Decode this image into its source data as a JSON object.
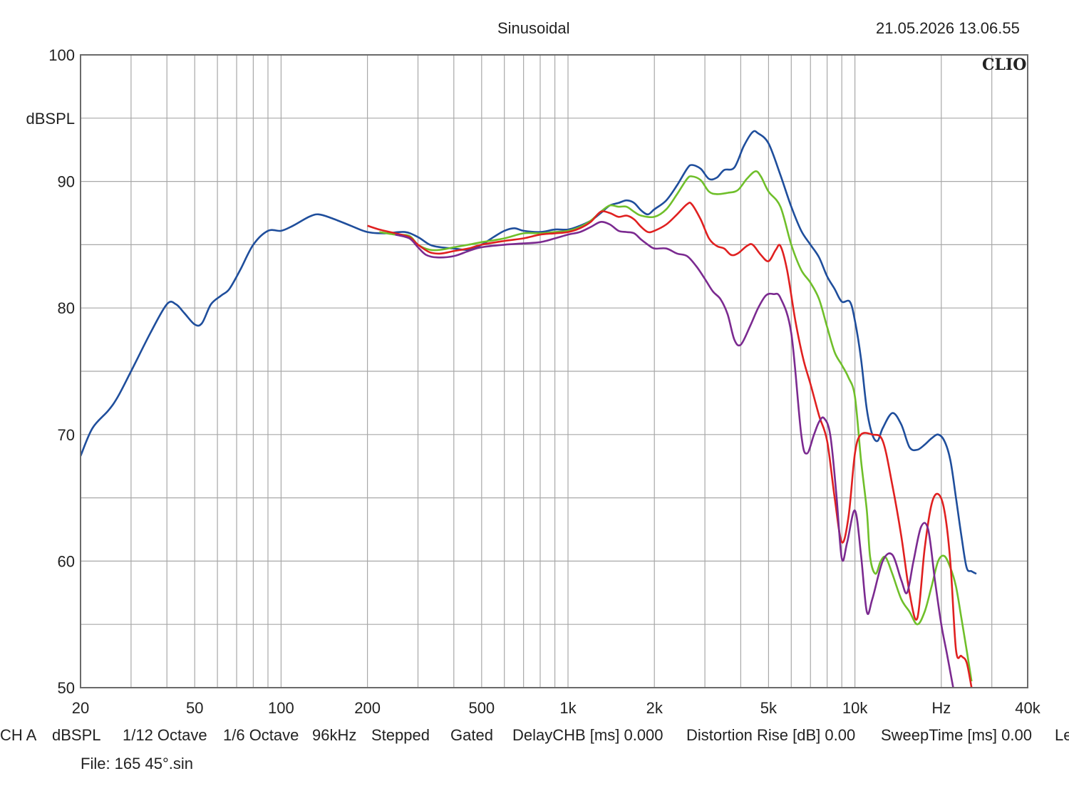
{
  "header": {
    "title": "Sinusoidal",
    "timestamp": "21.05.2026 13.06.55",
    "logo": "CLIO"
  },
  "footer": {
    "settings": [
      "CH A",
      "dBSPL",
      "1/12 Octave",
      "1/6 Octave",
      "96kHz",
      "Stepped",
      "Gated",
      "DelayCHB [ms] 0.000",
      "Distortion Rise [dB] 0.00",
      "SweepTime [ms] 0.00",
      "Le"
    ],
    "file": "File: 165 45°.sin"
  },
  "chart_data": {
    "type": "line",
    "title": "Sinusoidal",
    "ylabel": "dBSPL",
    "xscale": "log",
    "xlim": [
      20,
      40000
    ],
    "ylim": [
      50,
      100
    ],
    "grid": true,
    "xticks": [
      {
        "value": 20,
        "label": "20"
      },
      {
        "value": 50,
        "label": "50"
      },
      {
        "value": 100,
        "label": "100"
      },
      {
        "value": 200,
        "label": "200"
      },
      {
        "value": 500,
        "label": "500"
      },
      {
        "value": 1000,
        "label": "1k"
      },
      {
        "value": 2000,
        "label": "2k"
      },
      {
        "value": 5000,
        "label": "5k"
      },
      {
        "value": 10000,
        "label": "10k"
      },
      {
        "value": 20000,
        "label": "Hz"
      },
      {
        "value": 40000,
        "label": "40k"
      }
    ],
    "yticks": [
      {
        "value": 100,
        "label": "100"
      },
      {
        "value": 90,
        "label": "90"
      },
      {
        "value": 80,
        "label": "80"
      },
      {
        "value": 70,
        "label": "70"
      },
      {
        "value": 60,
        "label": "60"
      },
      {
        "value": 50,
        "label": "50"
      }
    ],
    "series": [
      {
        "color": "#1f4e9c",
        "points": [
          [
            20,
            68.3
          ],
          [
            22,
            70.5
          ],
          [
            25,
            71.9
          ],
          [
            27,
            73
          ],
          [
            30,
            75
          ],
          [
            35,
            78
          ],
          [
            40,
            80.3
          ],
          [
            43,
            80.3
          ],
          [
            46,
            79.6
          ],
          [
            50,
            78.7
          ],
          [
            53,
            78.8
          ],
          [
            57,
            80.3
          ],
          [
            62,
            81
          ],
          [
            66,
            81.5
          ],
          [
            72,
            83
          ],
          [
            80,
            85
          ],
          [
            90,
            86.1
          ],
          [
            100,
            86.1
          ],
          [
            110,
            86.5
          ],
          [
            125,
            87.2
          ],
          [
            135,
            87.4
          ],
          [
            150,
            87.1
          ],
          [
            175,
            86.5
          ],
          [
            200,
            86
          ],
          [
            230,
            85.9
          ],
          [
            270,
            86
          ],
          [
            300,
            85.6
          ],
          [
            330,
            85
          ],
          [
            360,
            84.8
          ],
          [
            400,
            84.7
          ],
          [
            450,
            84.6
          ],
          [
            500,
            85
          ],
          [
            550,
            85.6
          ],
          [
            600,
            86.1
          ],
          [
            650,
            86.3
          ],
          [
            700,
            86.1
          ],
          [
            800,
            86
          ],
          [
            900,
            86.2
          ],
          [
            1000,
            86.2
          ],
          [
            1100,
            86.5
          ],
          [
            1200,
            86.9
          ],
          [
            1300,
            87.5
          ],
          [
            1400,
            88.1
          ],
          [
            1500,
            88.3
          ],
          [
            1600,
            88.5
          ],
          [
            1700,
            88.3
          ],
          [
            1800,
            87.7
          ],
          [
            1900,
            87.4
          ],
          [
            2000,
            87.8
          ],
          [
            2200,
            88.5
          ],
          [
            2400,
            89.7
          ],
          [
            2600,
            91
          ],
          [
            2700,
            91.3
          ],
          [
            2900,
            91
          ],
          [
            3100,
            90.2
          ],
          [
            3300,
            90.3
          ],
          [
            3500,
            90.9
          ],
          [
            3800,
            91.1
          ],
          [
            4100,
            92.8
          ],
          [
            4400,
            93.9
          ],
          [
            4600,
            93.8
          ],
          [
            5000,
            93
          ],
          [
            5500,
            90.5
          ],
          [
            6000,
            88
          ],
          [
            6500,
            86.1
          ],
          [
            7000,
            85
          ],
          [
            7500,
            84
          ],
          [
            8000,
            82.5
          ],
          [
            8500,
            81.5
          ],
          [
            9000,
            80.5
          ],
          [
            9600,
            80.5
          ],
          [
            10000,
            79
          ],
          [
            10500,
            76
          ],
          [
            11000,
            72
          ],
          [
            11500,
            70
          ],
          [
            12000,
            69.5
          ],
          [
            12500,
            70.5
          ],
          [
            13500,
            71.7
          ],
          [
            14500,
            70.8
          ],
          [
            15500,
            69
          ],
          [
            16500,
            68.8
          ],
          [
            17500,
            69.2
          ],
          [
            18500,
            69.7
          ],
          [
            19500,
            70
          ],
          [
            20500,
            69.5
          ],
          [
            21500,
            68
          ],
          [
            22500,
            65
          ],
          [
            23500,
            62
          ],
          [
            24500,
            59.5
          ],
          [
            25500,
            59.2
          ],
          [
            26500,
            59
          ]
        ]
      },
      {
        "color": "#6fbf2a",
        "points": [
          [
            220,
            86
          ],
          [
            250,
            85.8
          ],
          [
            280,
            85.7
          ],
          [
            300,
            85
          ],
          [
            330,
            84.6
          ],
          [
            360,
            84.6
          ],
          [
            400,
            84.8
          ],
          [
            450,
            85
          ],
          [
            500,
            85.2
          ],
          [
            600,
            85.5
          ],
          [
            700,
            85.9
          ],
          [
            800,
            85.9
          ],
          [
            900,
            86
          ],
          [
            1000,
            86.1
          ],
          [
            1100,
            86.4
          ],
          [
            1200,
            86.9
          ],
          [
            1300,
            87.6
          ],
          [
            1400,
            88.1
          ],
          [
            1500,
            88
          ],
          [
            1600,
            88
          ],
          [
            1700,
            87.6
          ],
          [
            1800,
            87.3
          ],
          [
            2000,
            87.2
          ],
          [
            2200,
            87.8
          ],
          [
            2400,
            89
          ],
          [
            2600,
            90.2
          ],
          [
            2700,
            90.4
          ],
          [
            2900,
            90.1
          ],
          [
            3100,
            89.2
          ],
          [
            3300,
            89
          ],
          [
            3600,
            89.1
          ],
          [
            3900,
            89.3
          ],
          [
            4200,
            90.2
          ],
          [
            4500,
            90.8
          ],
          [
            4700,
            90.4
          ],
          [
            5000,
            89.2
          ],
          [
            5500,
            88
          ],
          [
            6000,
            85
          ],
          [
            6500,
            83
          ],
          [
            7000,
            82
          ],
          [
            7500,
            80.7
          ],
          [
            8000,
            78.5
          ],
          [
            8500,
            76.5
          ],
          [
            9000,
            75.5
          ],
          [
            9500,
            74.5
          ],
          [
            10000,
            73
          ],
          [
            10500,
            68
          ],
          [
            11000,
            64
          ],
          [
            11300,
            60.3
          ],
          [
            11800,
            59
          ],
          [
            12300,
            60
          ],
          [
            12800,
            60.3
          ],
          [
            13500,
            59
          ],
          [
            14500,
            57
          ],
          [
            15500,
            56
          ],
          [
            16500,
            55
          ],
          [
            17500,
            56
          ],
          [
            18500,
            58
          ],
          [
            19500,
            60
          ],
          [
            20500,
            60.4
          ],
          [
            21500,
            59.5
          ],
          [
            22500,
            58
          ],
          [
            23500,
            55.5
          ],
          [
            24500,
            53
          ],
          [
            25500,
            50.5
          ]
        ]
      },
      {
        "color": "#e02020",
        "points": [
          [
            200,
            86.5
          ],
          [
            220,
            86.2
          ],
          [
            250,
            85.9
          ],
          [
            280,
            85.6
          ],
          [
            300,
            85
          ],
          [
            330,
            84.4
          ],
          [
            360,
            84.3
          ],
          [
            400,
            84.5
          ],
          [
            450,
            84.7
          ],
          [
            500,
            85
          ],
          [
            600,
            85.3
          ],
          [
            700,
            85.5
          ],
          [
            800,
            85.8
          ],
          [
            900,
            85.9
          ],
          [
            1000,
            86
          ],
          [
            1100,
            86.3
          ],
          [
            1200,
            86.8
          ],
          [
            1300,
            87.6
          ],
          [
            1400,
            87.5
          ],
          [
            1500,
            87.2
          ],
          [
            1600,
            87.3
          ],
          [
            1700,
            87
          ],
          [
            1800,
            86.4
          ],
          [
            1900,
            86
          ],
          [
            2000,
            86.1
          ],
          [
            2200,
            86.6
          ],
          [
            2400,
            87.4
          ],
          [
            2600,
            88.2
          ],
          [
            2700,
            88.2
          ],
          [
            2900,
            87
          ],
          [
            3100,
            85.5
          ],
          [
            3300,
            84.9
          ],
          [
            3500,
            84.7
          ],
          [
            3700,
            84.2
          ],
          [
            3900,
            84.3
          ],
          [
            4200,
            84.9
          ],
          [
            4400,
            85
          ],
          [
            4700,
            84.2
          ],
          [
            5000,
            83.7
          ],
          [
            5300,
            84.6
          ],
          [
            5500,
            84.9
          ],
          [
            5800,
            83
          ],
          [
            6200,
            79
          ],
          [
            6600,
            76
          ],
          [
            7000,
            74
          ],
          [
            7500,
            71.5
          ],
          [
            8000,
            69.5
          ],
          [
            8500,
            65
          ],
          [
            9000,
            61.5
          ],
          [
            9500,
            63.5
          ],
          [
            10000,
            68.5
          ],
          [
            10500,
            70
          ],
          [
            11500,
            70
          ],
          [
            12500,
            69.5
          ],
          [
            13500,
            66
          ],
          [
            14500,
            62
          ],
          [
            15500,
            57.5
          ],
          [
            16500,
            55.5
          ],
          [
            17500,
            61
          ],
          [
            18500,
            64.5
          ],
          [
            19500,
            65.3
          ],
          [
            20500,
            64
          ],
          [
            21500,
            60
          ],
          [
            22500,
            53
          ],
          [
            23500,
            52.5
          ],
          [
            24500,
            52
          ],
          [
            25500,
            50
          ]
        ]
      },
      {
        "color": "#7b2a90",
        "points": [
          [
            250,
            85.8
          ],
          [
            280,
            85.5
          ],
          [
            300,
            84.8
          ],
          [
            320,
            84.2
          ],
          [
            350,
            84
          ],
          [
            400,
            84.1
          ],
          [
            450,
            84.5
          ],
          [
            500,
            84.8
          ],
          [
            600,
            85
          ],
          [
            700,
            85.1
          ],
          [
            800,
            85.2
          ],
          [
            900,
            85.5
          ],
          [
            1000,
            85.8
          ],
          [
            1100,
            86
          ],
          [
            1200,
            86.4
          ],
          [
            1300,
            86.8
          ],
          [
            1400,
            86.6
          ],
          [
            1500,
            86.1
          ],
          [
            1600,
            86
          ],
          [
            1700,
            85.9
          ],
          [
            1800,
            85.4
          ],
          [
            1900,
            85
          ],
          [
            2000,
            84.7
          ],
          [
            2200,
            84.7
          ],
          [
            2400,
            84.3
          ],
          [
            2600,
            84.1
          ],
          [
            2800,
            83.3
          ],
          [
            3000,
            82.3
          ],
          [
            3200,
            81.3
          ],
          [
            3400,
            80.7
          ],
          [
            3600,
            79.5
          ],
          [
            3800,
            77.5
          ],
          [
            4000,
            77.1
          ],
          [
            4300,
            78.5
          ],
          [
            4600,
            80
          ],
          [
            4900,
            81
          ],
          [
            5200,
            81.1
          ],
          [
            5500,
            80.8
          ],
          [
            6000,
            78
          ],
          [
            6500,
            70
          ],
          [
            6800,
            68.5
          ],
          [
            7200,
            70
          ],
          [
            7500,
            71
          ],
          [
            7800,
            71.3
          ],
          [
            8200,
            70
          ],
          [
            8600,
            65.5
          ],
          [
            9000,
            60.2
          ],
          [
            9400,
            61.5
          ],
          [
            10000,
            64
          ],
          [
            10500,
            60.5
          ],
          [
            11000,
            56
          ],
          [
            11500,
            57
          ],
          [
            12500,
            60
          ],
          [
            13500,
            60.5
          ],
          [
            14500,
            58.5
          ],
          [
            15200,
            57.5
          ],
          [
            16000,
            60
          ],
          [
            17000,
            62.7
          ],
          [
            18000,
            62.5
          ],
          [
            19000,
            58.5
          ],
          [
            20000,
            55
          ],
          [
            21000,
            52.5
          ],
          [
            22000,
            50
          ]
        ]
      }
    ]
  }
}
